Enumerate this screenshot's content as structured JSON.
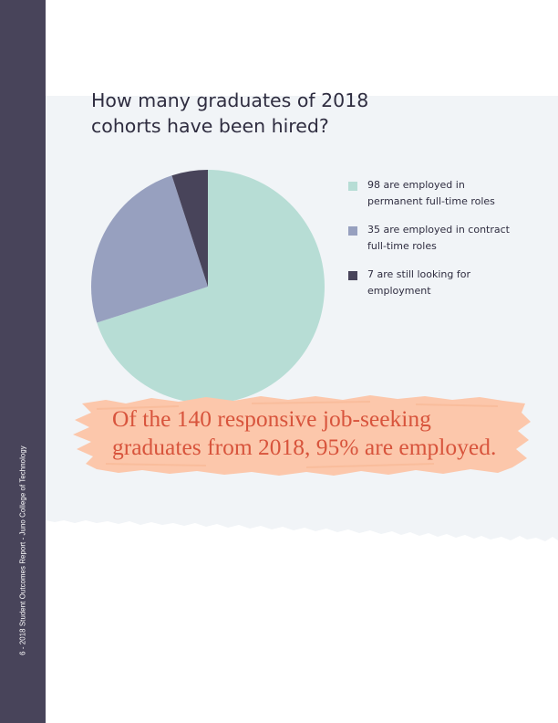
{
  "sidebar": {
    "text": "6 - 2018 Student Outcomes Report - Juno College of Technology"
  },
  "colors": {
    "sidebar": "#48445a",
    "panel": "#f1f4f7",
    "title_text": "#2f2d40",
    "callout_text": "#d8543c",
    "brush": "#fcc7ab"
  },
  "chart_data": {
    "type": "pie",
    "title": "How many graduates of 2018 cohorts have been hired?",
    "total": 140,
    "slices": [
      {
        "label": "98 are employed in permanent full-time roles",
        "value": 98,
        "color": "#b7ddd5"
      },
      {
        "label": "35 are employed in contract full-time roles",
        "value": 35,
        "color": "#97a0bf"
      },
      {
        "label": "7 are still looking for employment",
        "value": 7,
        "color": "#48445a"
      }
    ],
    "legend_position": "right"
  },
  "callout": {
    "text": "Of the 140 responsive job-seeking graduates from 2018, 95% are employed."
  }
}
